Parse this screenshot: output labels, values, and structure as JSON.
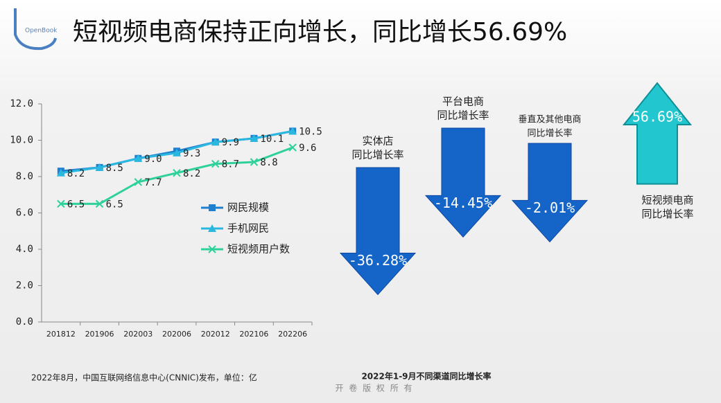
{
  "title": "短视频电商保持正向增长，同比增长56.69%",
  "logo": "OpenBook",
  "source": "2022年8月，中国互联网络信息中心(CNNIC)发布，单位：亿",
  "copyright": "开 卷 版 权 所 有",
  "chart_data": [
    {
      "type": "line",
      "categories": [
        "201812",
        "201906",
        "202003",
        "202006",
        "202012",
        "202106",
        "202206"
      ],
      "ylim": [
        0,
        12
      ],
      "yticks": [
        {
          "value": 0,
          "label": "0.0"
        },
        {
          "value": 2,
          "label": "2.0"
        },
        {
          "value": 4,
          "label": "4.0"
        },
        {
          "value": 6,
          "label": "6.0"
        },
        {
          "value": 8,
          "label": "8.0"
        },
        {
          "value": 10,
          "label": "10.0"
        },
        {
          "value": 12,
          "label": "12.0"
        }
      ],
      "legend": "inside-lower-right",
      "series": [
        {
          "name": "网民规模",
          "color": "#1f7fd0",
          "marker": "square",
          "values": [
            8.3,
            8.5,
            9.0,
            9.4,
            9.9,
            10.1,
            10.5
          ]
        },
        {
          "name": "手机网民",
          "color": "#2bb8e0",
          "marker": "triangle",
          "values": [
            8.2,
            8.5,
            9.0,
            9.3,
            9.9,
            10.1,
            10.5
          ],
          "value_labels": [
            "8.2",
            "8.5",
            "9.0",
            "9.3",
            "9.9",
            "10.1",
            "10.5"
          ]
        },
        {
          "name": "短视频用户数",
          "color": "#2ed19a",
          "marker": "x",
          "values": [
            6.5,
            6.5,
            7.7,
            8.2,
            8.7,
            8.8,
            9.6
          ],
          "value_labels": [
            "6.5",
            "6.5",
            "7.7",
            "8.2",
            "8.7",
            "8.8",
            "9.6"
          ]
        }
      ]
    },
    {
      "type": "arrow",
      "title": "2022年1-9月不同渠道同比增长率",
      "categories": [
        [
          "实体店",
          "同比增长率"
        ],
        [
          "平台电商",
          "同比增长率"
        ],
        [
          "垂直及其他电商",
          "同比增长率"
        ],
        [
          "短视频电商",
          "同比增长率"
        ]
      ],
      "values": [
        -36.28,
        -14.45,
        -2.01,
        56.69
      ],
      "value_labels": [
        "-36.28%",
        "-14.45%",
        "-2.01%",
        "56.69%"
      ],
      "colors": [
        "#1565c8",
        "#1565c8",
        "#1565c8",
        "#22c6cf"
      ]
    }
  ]
}
